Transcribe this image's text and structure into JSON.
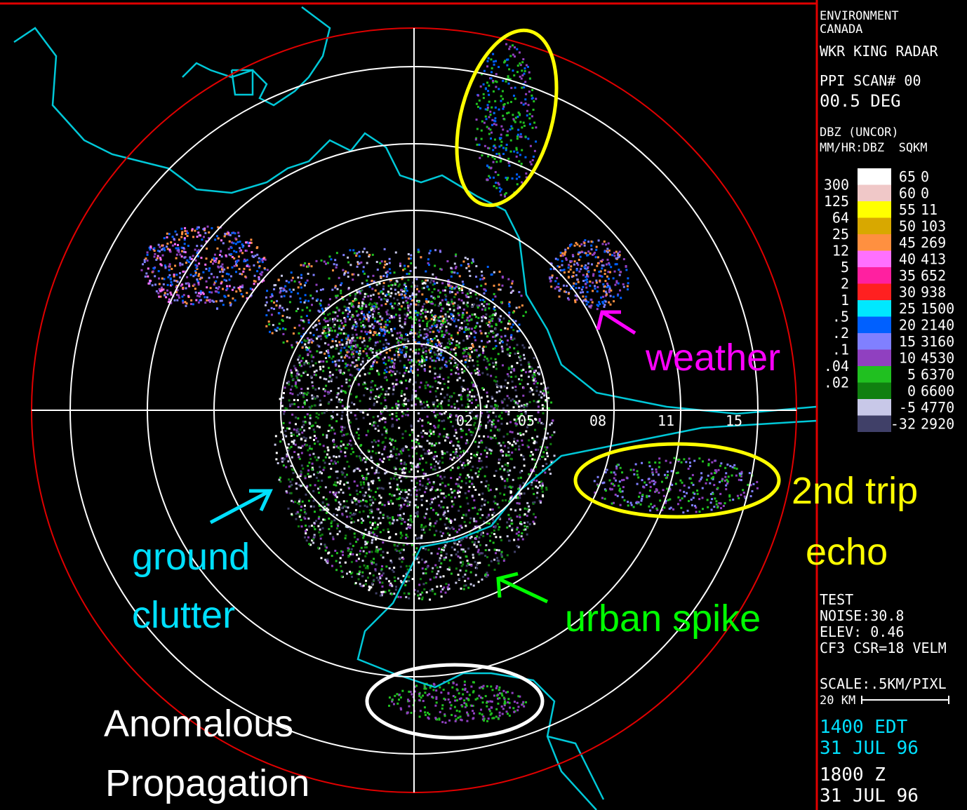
{
  "header": {
    "org": [
      "ENVIRONMENT",
      "CANADA"
    ],
    "station": "WKR KING RADAR",
    "scan": "PPI SCAN# 00",
    "elevation": "00.5 DEG",
    "product": "DBZ (UNCOR)",
    "columns": "MM/HR:DBZ  SQKM"
  },
  "legend": [
    {
      "dbz": "65",
      "sqkm": "0",
      "color": "#ffffff"
    },
    {
      "rate": "300",
      "dbz": "60",
      "sqkm": "0",
      "color": "#f0c8c8"
    },
    {
      "rate": "125",
      "dbz": "55",
      "sqkm": "11",
      "color": "#ffff00"
    },
    {
      "rate": "64",
      "dbz": "50",
      "sqkm": "103",
      "color": "#d8a800"
    },
    {
      "rate": "25",
      "dbz": "45",
      "sqkm": "269",
      "color": "#ff9040"
    },
    {
      "rate": "12",
      "dbz": "40",
      "sqkm": "413",
      "color": "#ff70ff"
    },
    {
      "rate": "5",
      "dbz": "35",
      "sqkm": "652",
      "color": "#ff20a0"
    },
    {
      "rate": "2",
      "dbz": "30",
      "sqkm": "938",
      "color": "#ff2020"
    },
    {
      "rate": "1",
      "dbz": "25",
      "sqkm": "1500",
      "color": "#00e8ff"
    },
    {
      "rate": ".5",
      "dbz": "20",
      "sqkm": "2140",
      "color": "#0060ff"
    },
    {
      "rate": ".2",
      "dbz": "15",
      "sqkm": "3160",
      "color": "#8080ff"
    },
    {
      "rate": ".1",
      "dbz": "10",
      "sqkm": "4530",
      "color": "#9040c0"
    },
    {
      "rate": ".04",
      "dbz": "5",
      "sqkm": "6370",
      "color": "#20c020"
    },
    {
      "rate": ".02",
      "dbz": "0",
      "sqkm": "6600",
      "color": "#108010"
    },
    {
      "dbz": "-5",
      "sqkm": "4770",
      "color": "#c8c8e8"
    },
    {
      "dbz": "-32",
      "sqkm": "2920",
      "color": "#404068"
    }
  ],
  "status": [
    "TEST",
    "NOISE:30.8",
    "ELEV: 0.46",
    "CF3 CSR=18 VELM"
  ],
  "scale": [
    "SCALE:.5KM/PIXL",
    "20 KM"
  ],
  "times": [
    {
      "text": "1400 EDT",
      "color": "#00e0ff"
    },
    {
      "text": "31 JUL 96",
      "color": "#00e0ff"
    },
    {
      "text": "1800 Z",
      "color": "#ffffff"
    },
    {
      "text": "31 JUL 96",
      "color": "#ffffff"
    }
  ],
  "range_labels": [
    "02",
    "05",
    "08",
    "11",
    "15"
  ],
  "annotations": {
    "weather": "weather",
    "second_trip": [
      "2nd trip",
      "echo"
    ],
    "ground_clutter": [
      "ground",
      "clutter"
    ],
    "urban_spike": "urban spike",
    "anomalous": [
      "Anomalous",
      "Propagation"
    ]
  }
}
